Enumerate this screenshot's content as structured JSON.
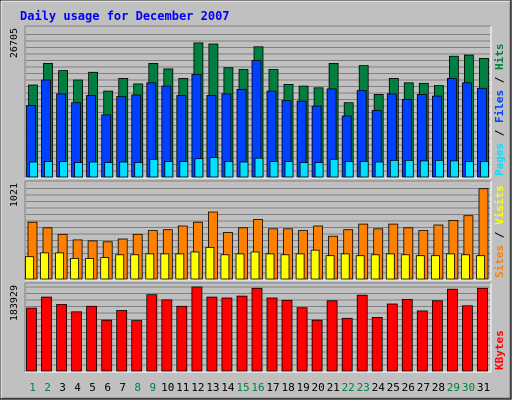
{
  "title": "Daily usage for December 2007",
  "colors": {
    "background": "#c0c0c0",
    "title": "#0000ff",
    "hits": "#008040",
    "files": "#0040ff",
    "pages": "#00e0ff",
    "visits": "#ffff00",
    "sites": "#ff8000",
    "kbytes": "#ff0000",
    "weekday_label": "#000000",
    "weekend_label": "#008040"
  },
  "chart_data": {
    "type": "bar",
    "categories": [
      "1",
      "2",
      "3",
      "4",
      "5",
      "6",
      "7",
      "8",
      "9",
      "10",
      "11",
      "12",
      "13",
      "14",
      "15",
      "16",
      "17",
      "18",
      "19",
      "20",
      "21",
      "22",
      "23",
      "24",
      "25",
      "26",
      "27",
      "28",
      "29",
      "30",
      "31"
    ],
    "weekend_days": [
      "1",
      "2",
      "8",
      "9",
      "15",
      "16",
      "22",
      "23",
      "29",
      "30"
    ],
    "panels": [
      {
        "id": "hits-files-pages",
        "ymax_label": "26705",
        "ylim": [
          0,
          26705
        ],
        "legend": [
          "Pages",
          "/",
          "Files",
          "/",
          "Hits"
        ],
        "series": [
          {
            "name": "Hits",
            "color_key": "hits",
            "values": [
              16600,
              20500,
              19200,
              17500,
              18900,
              15500,
              17800,
              16800,
              20500,
              19500,
              17800,
              24200,
              24000,
              19700,
              19400,
              23500,
              19400,
              16700,
              16400,
              16100,
              20500,
              13400,
              20100,
              14900,
              17800,
              17000,
              16900,
              16500,
              21800,
              22000,
              21400
            ]
          },
          {
            "name": "Files",
            "color_key": "files",
            "values": [
              12900,
              17500,
              15000,
              13400,
              14700,
              11200,
              14500,
              14800,
              17000,
              16400,
              14700,
              18500,
              14700,
              15000,
              15800,
              21000,
              15500,
              13800,
              13700,
              12800,
              15900,
              11000,
              15600,
              12000,
              15000,
              14000,
              14900,
              14600,
              17800,
              17000,
              16000
            ]
          },
          {
            "name": "Pages",
            "color_key": "pages",
            "values": [
              2700,
              2800,
              2800,
              2600,
              2700,
              2600,
              2700,
              2600,
              3200,
              2800,
              2800,
              3300,
              3500,
              2800,
              2700,
              3400,
              2800,
              2800,
              2600,
              2600,
              3200,
              2800,
              2800,
              2700,
              3000,
              3000,
              2900,
              3000,
              2900,
              2800,
              2800
            ]
          }
        ]
      },
      {
        "id": "visits-sites",
        "ymax_label": "1021",
        "ylim": [
          0,
          1021
        ],
        "legend": [
          "Sites",
          "/",
          "Visits"
        ],
        "series": [
          {
            "name": "Sites",
            "color_key": "sites",
            "values": [
              610,
              550,
              480,
              420,
              410,
              400,
              430,
              480,
              520,
              530,
              570,
              610,
              720,
              500,
              550,
              640,
              540,
              540,
              520,
              570,
              460,
              530,
              590,
              540,
              590,
              550,
              520,
              580,
              630,
              680,
              970
            ]
          },
          {
            "name": "Visits",
            "color_key": "visits",
            "values": [
              240,
              280,
              280,
              220,
              220,
              230,
              260,
              260,
              270,
              270,
              270,
              290,
              340,
              260,
              270,
              290,
              270,
              260,
              270,
              310,
              250,
              270,
              250,
              260,
              270,
              260,
              250,
              250,
              270,
              260,
              250
            ]
          }
        ]
      },
      {
        "id": "kbytes",
        "ymax_label": "183929",
        "ylim": [
          0,
          183929
        ],
        "legend": [
          "KBytes"
        ],
        "series": [
          {
            "name": "KBytes",
            "color_key": "kbytes",
            "values": [
              136000,
              160000,
              144000,
              128000,
              140000,
              110000,
              131000,
              109000,
              165000,
              154000,
              140000,
              182000,
              160000,
              158000,
              162000,
              179000,
              158000,
              153000,
              137000,
              110000,
              152000,
              114000,
              164000,
              116000,
              145000,
              155000,
              130000,
              152000,
              177000,
              141000,
              179000
            ]
          }
        ]
      }
    ]
  }
}
